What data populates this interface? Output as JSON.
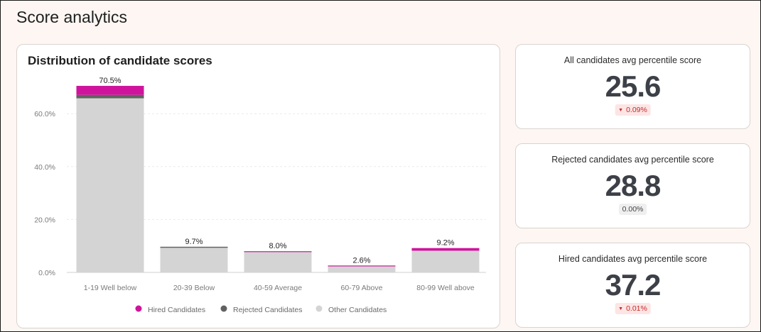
{
  "page": {
    "title": "Score analytics"
  },
  "distribution": {
    "title": "Distribution of candidate scores"
  },
  "stats": [
    {
      "label": "All candidates avg percentile score",
      "value": "25.6",
      "change": "0.09%",
      "trend": "down"
    },
    {
      "label": "Rejected candidates avg percentile score",
      "value": "28.8",
      "change": "0.00%",
      "trend": "neutral"
    },
    {
      "label": "Hired candidates avg percentile score",
      "value": "37.2",
      "change": "0.01%",
      "trend": "down"
    }
  ],
  "colors": {
    "hired": "#d0139c",
    "rejected": "#616161",
    "other": "#d4d4d4",
    "grid": "#ececec"
  },
  "chart_data": {
    "type": "bar",
    "stacked": true,
    "categories": [
      "1-19 Well below",
      "20-39 Below",
      "40-59 Average",
      "60-79 Above",
      "80-99 Well above"
    ],
    "series": [
      {
        "name": "Other Candidates",
        "color": "#d4d4d4",
        "values": [
          65.8,
          9.3,
          7.8,
          2.4,
          8.2
        ]
      },
      {
        "name": "Rejected Candidates",
        "color": "#616161",
        "values": [
          1.3,
          0.4,
          0.0,
          0.0,
          0.0
        ]
      },
      {
        "name": "Hired Candidates",
        "color": "#d0139c",
        "values": [
          3.4,
          0.0,
          0.2,
          0.2,
          1.0
        ]
      }
    ],
    "totals": [
      70.5,
      9.7,
      8.0,
      2.6,
      9.2
    ],
    "total_labels": [
      "70.5%",
      "9.7%",
      "8.0%",
      "2.6%",
      "9.2%"
    ],
    "yticks": [
      0,
      20,
      40,
      60
    ],
    "ytick_labels": [
      "0.0%",
      "20.0%",
      "40.0%",
      "60.0%"
    ],
    "ylim": [
      0,
      75
    ],
    "grid": true,
    "legend_position": "bottom",
    "legend": [
      {
        "name": "Hired Candidates",
        "color": "#d0139c"
      },
      {
        "name": "Rejected Candidates",
        "color": "#616161"
      },
      {
        "name": "Other Candidates",
        "color": "#d4d4d4"
      }
    ]
  }
}
